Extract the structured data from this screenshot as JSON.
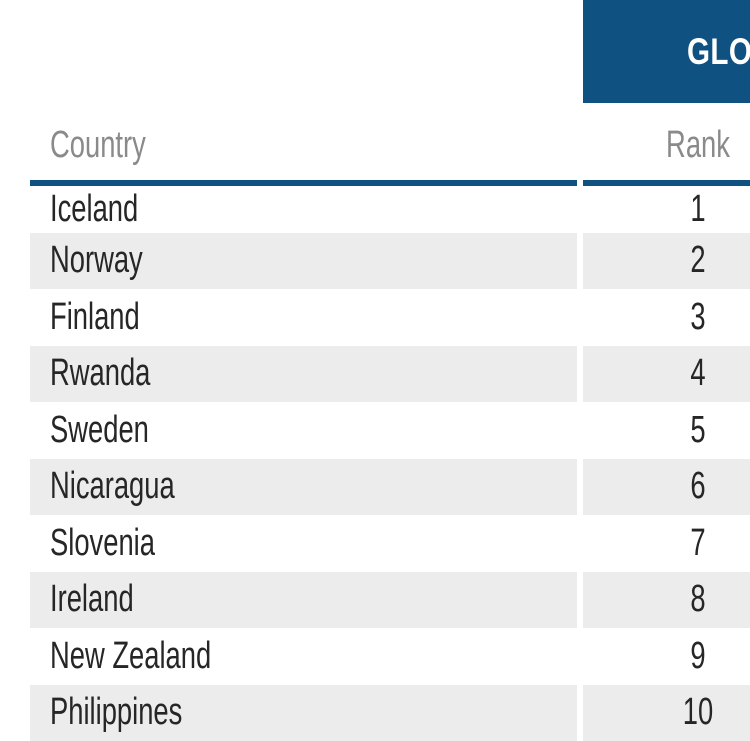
{
  "global_header": {
    "label": "GLO",
    "background": "#0f5181",
    "text_color": "#ffffff"
  },
  "table": {
    "country_header": "Country",
    "rank_header": "Rank",
    "rows": [
      {
        "country": "Iceland",
        "rank": "1"
      },
      {
        "country": "Norway",
        "rank": "2"
      },
      {
        "country": "Finland",
        "rank": "3"
      },
      {
        "country": "Rwanda",
        "rank": "4"
      },
      {
        "country": "Sweden",
        "rank": "5"
      },
      {
        "country": "Nicaragua",
        "rank": "6"
      },
      {
        "country": "Slovenia",
        "rank": "7"
      },
      {
        "country": "Ireland",
        "rank": "8"
      },
      {
        "country": "New Zealand",
        "rank": "9"
      },
      {
        "country": "Philippines",
        "rank": "10"
      }
    ],
    "colors": {
      "accent": "#0f5181",
      "stripe": "#ececec",
      "header_text": "#8a8a8a",
      "body_text": "#262626"
    }
  }
}
